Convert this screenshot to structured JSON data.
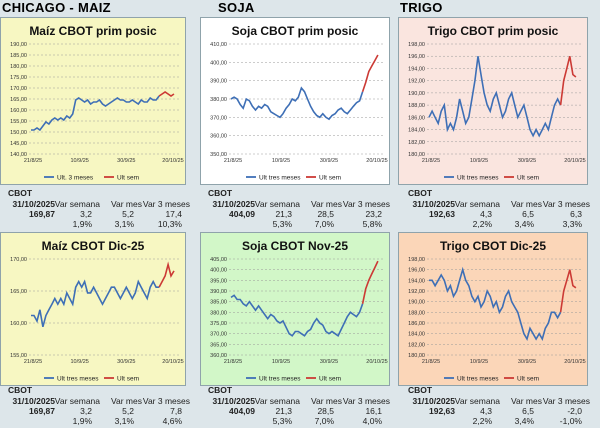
{
  "headers": {
    "corn": "CHICAGO - MAIZ",
    "soy": "SOJA",
    "wheat": "TRIGO"
  },
  "colors": {
    "hist": "#3e6fb6",
    "recent": "#cc3a35"
  },
  "stats_labels": {
    "cbot": "CBOT",
    "date": "31/10/2025",
    "week": "Var semana",
    "month": "Var mes",
    "three": "Var 3 meses"
  },
  "panels": [
    {
      "id": "corn-top",
      "title": "Maíz CBOT prim posic",
      "bg": "#f7f7c2",
      "chart_data": {
        "type": "line",
        "title": "Maíz CBOT prim posic",
        "ylim": [
          140,
          195
        ],
        "yticks": [
          "140,00",
          "145,00",
          "150,00",
          "155,00",
          "160,00",
          "165,00",
          "170,00",
          "175,00",
          "180,00",
          "185,00",
          "190,00"
        ],
        "xticks": [
          "21/8/25",
          "10/9/25",
          "30/9/25",
          "20/10/25"
        ],
        "legend": [
          "Ult. 3 meses",
          "Ult sem"
        ],
        "series": [
          {
            "name": "Ult. 3 meses",
            "values": [
              152,
              152,
              153,
              152,
              154,
              156,
              155,
              157,
              158,
              157,
              158,
              157,
              159,
              158,
              160,
              167,
              168,
              167,
              166,
              167,
              165,
              166,
              166,
              167,
              165,
              164,
              165,
              166,
              167,
              168,
              167,
              167,
              166,
              166,
              167,
              166,
              165,
              167,
              166,
              166,
              168,
              167,
              167,
              169
            ]
          },
          {
            "name": "Ult sem",
            "values": [
              169,
              170,
              171,
              170,
              169,
              170
            ]
          }
        ]
      },
      "stats": {
        "price": "169,87",
        "week": "3,2",
        "month": "5,2",
        "three": "17,4",
        "week_pct": "1,9%",
        "month_pct": "3,1%",
        "three_pct": "10,3%"
      }
    },
    {
      "id": "soy-top",
      "title": "Soja CBOT prim posic",
      "bg": "#ffffff",
      "chart_data": {
        "type": "line",
        "title": "Soja CBOT prim posic",
        "ylim": [
          350,
          410
        ],
        "yticks": [
          "350,00",
          "360,00",
          "370,00",
          "380,00",
          "390,00",
          "400,00",
          "410,00"
        ],
        "xticks": [
          "21/8/25",
          "10/9/25",
          "30/9/25",
          "20/10/25"
        ],
        "legend": [
          "Ult tres meses",
          "Ult sem"
        ],
        "series": [
          {
            "name": "Ult tres meses",
            "values": [
              380,
              381,
              380,
              377,
              375,
              380,
              379,
              376,
              374,
              376,
              375,
              377,
              376,
              373,
              372,
              371,
              370,
              372,
              375,
              377,
              380,
              379,
              381,
              386,
              384,
              380,
              376,
              373,
              371,
              370,
              372,
              370,
              369,
              371,
              372,
              374,
              375,
              373,
              372,
              374,
              376,
              378,
              379,
              384
            ]
          },
          {
            "name": "Ult sem",
            "values": [
              384,
              389,
              395,
              398,
              401,
              404
            ]
          }
        ]
      },
      "stats": {
        "price": "404,09",
        "week": "21,3",
        "month": "28,5",
        "three": "23,2",
        "week_pct": "5,3%",
        "month_pct": "7,0%",
        "three_pct": "5,8%"
      }
    },
    {
      "id": "wheat-top",
      "title": "Trigo CBOT prim posic",
      "bg": "#fae5df",
      "chart_data": {
        "type": "line",
        "title": "Trigo CBOT prim posic",
        "ylim": [
          180,
          198
        ],
        "yticks": [
          "180,00",
          "182,00",
          "184,00",
          "186,00",
          "188,00",
          "190,00",
          "192,00",
          "194,00",
          "196,00",
          "198,00"
        ],
        "xticks": [
          "21/8/25",
          "10/9/25",
          "30/9/25",
          "20/10/25"
        ],
        "legend": [
          "Ult tres meses",
          "Ult sem"
        ],
        "series": [
          {
            "name": "Ult tres meses",
            "values": [
              186,
              187,
              186,
              185,
              187,
              188,
              184,
              185,
              184,
              186,
              189,
              187,
              185,
              186,
              189,
              192,
              196,
              193,
              190,
              188,
              187,
              189,
              190,
              188,
              186,
              187,
              189,
              190,
              188,
              186,
              187,
              188,
              186,
              184,
              183,
              184,
              183,
              184,
              185,
              184,
              186,
              188,
              189,
              188
            ]
          },
          {
            "name": "Ult sem",
            "values": [
              188,
              192,
              194,
              196,
              193,
              192.6
            ]
          }
        ]
      },
      "stats": {
        "price": "192,63",
        "week": "4,3",
        "month": "6,5",
        "three": "6,3",
        "week_pct": "2,2%",
        "month_pct": "3,4%",
        "three_pct": "3,3%"
      }
    },
    {
      "id": "corn-bot",
      "title": "Maíz CBOT Dic-25",
      "bg": "#f7f7c2",
      "chart_data": {
        "type": "line",
        "title": "Maíz CBOT Dic-25",
        "ylim": [
          155,
          172
        ],
        "yticks": [
          "155,00",
          "160,00",
          "165,00",
          "170,00"
        ],
        "xticks": [
          "21/8/25",
          "10/9/25",
          "30/9/25",
          "20/10/25"
        ],
        "legend": [
          "Ult tres meses",
          "Ult sem"
        ],
        "series": [
          {
            "name": "Ult tres meses",
            "values": [
              162,
              162,
              161,
              163,
              160,
              162,
              163,
              164,
              165,
              164,
              165,
              164,
              166,
              165,
              164,
              167,
              168,
              167,
              168,
              166,
              166,
              167,
              166,
              165,
              164,
              165,
              166,
              167,
              167,
              166,
              165,
              166,
              167,
              166,
              165,
              166,
              168,
              167,
              166,
              165,
              167,
              168,
              167,
              167
            ]
          },
          {
            "name": "Ult sem",
            "values": [
              167,
              168,
              169,
              171,
              169,
              169.9
            ]
          }
        ]
      },
      "stats": {
        "price": "169,87",
        "week": "3,2",
        "month": "5,2",
        "three": "7,8",
        "week_pct": "1,9%",
        "month_pct": "3,1%",
        "three_pct": "4,6%"
      }
    },
    {
      "id": "soy-bot",
      "title": "Soja CBOT Nov-25",
      "bg": "#d2f7c8",
      "chart_data": {
        "type": "line",
        "title": "Soja CBOT Nov-25",
        "ylim": [
          360,
          405
        ],
        "yticks": [
          "360,00",
          "365,00",
          "370,00",
          "375,00",
          "380,00",
          "385,00",
          "390,00",
          "395,00",
          "400,00",
          "405,00"
        ],
        "xticks": [
          "21/8/25",
          "10/9/25",
          "30/9/25",
          "20/10/25"
        ],
        "legend": [
          "Ult tres meses",
          "Ult sem"
        ],
        "series": [
          {
            "name": "Ult tres meses",
            "values": [
              387,
              388,
              386,
              386,
              384,
              383,
              385,
              383,
              381,
              383,
              381,
              379,
              377,
              379,
              378,
              376,
              375,
              376,
              373,
              370,
              369,
              371,
              371,
              370,
              369,
              371,
              372,
              375,
              377,
              375,
              374,
              371,
              370,
              371,
              370,
              369,
              372,
              375,
              378,
              380,
              379,
              378,
              380,
              384
            ]
          },
          {
            "name": "Ult sem",
            "values": [
              384,
              391,
              395,
              398,
              401,
              404
            ]
          }
        ]
      },
      "stats": {
        "price": "404,09",
        "week": "21,3",
        "month": "28,5",
        "three": "16,1",
        "week_pct": "5,3%",
        "month_pct": "7,0%",
        "three_pct": "4,0%"
      }
    },
    {
      "id": "wheat-bot",
      "title": "Trigo CBOT Dic-25",
      "bg": "#fbd6b8",
      "chart_data": {
        "type": "line",
        "title": "Trigo CBOT Dic-25",
        "ylim": [
          180,
          198
        ],
        "yticks": [
          "180,00",
          "182,00",
          "184,00",
          "186,00",
          "188,00",
          "190,00",
          "192,00",
          "194,00",
          "196,00",
          "198,00"
        ],
        "xticks": [
          "21/8/25",
          "10/9/25",
          "30/9/25",
          "20/10/25"
        ],
        "legend": [
          "Ult tres meses",
          "Ult sem"
        ],
        "series": [
          {
            "name": "Ult tres meses",
            "values": [
              194,
              194,
              193,
              194,
              195,
              194,
              192,
              193,
              191,
              192,
              194,
              196,
              194,
              193,
              191,
              190,
              191,
              189,
              190,
              192,
              191,
              189,
              190,
              188,
              189,
              191,
              192,
              190,
              189,
              188,
              186,
              184,
              183,
              185,
              184,
              183,
              184,
              183,
              185,
              186,
              188,
              188,
              187,
              188
            ]
          },
          {
            "name": "Ult sem",
            "values": [
              188,
              192,
              194,
              196,
              193,
              192.6
            ]
          }
        ]
      },
      "stats": {
        "price": "192,63",
        "week": "4,3",
        "month": "6,5",
        "three": "-2,0",
        "week_pct": "2,2%",
        "month_pct": "3,4%",
        "three_pct": "-1,0%"
      }
    }
  ]
}
